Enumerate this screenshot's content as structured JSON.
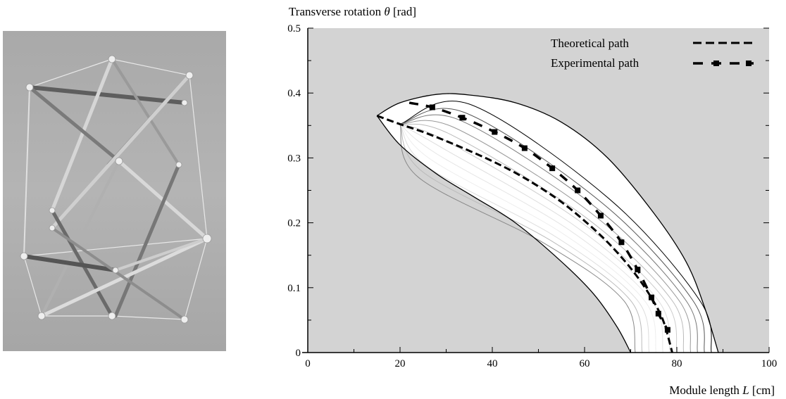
{
  "photo": {
    "description_icon": "tensegrity-module-photo"
  },
  "chart_data": {
    "type": "line",
    "xlabel_prefix": "Module length ",
    "xlabel_var": "L",
    "xlabel_unit": " [cm]",
    "ylabel_prefix": "Transverse rotation ",
    "ylabel_var": "θ",
    "ylabel_unit": " [rad]",
    "xlim": [
      0,
      100
    ],
    "ylim": [
      0,
      0.5
    ],
    "x_ticks": [
      "0",
      "20",
      "40",
      "60",
      "80",
      "100"
    ],
    "x_tick_values": [
      0,
      20,
      40,
      60,
      80,
      100
    ],
    "y_ticks": [
      "0",
      "0.1",
      "0.2",
      "0.3",
      "0.4",
      "0.5"
    ],
    "y_tick_values": [
      0,
      0.1,
      0.2,
      0.3,
      0.4,
      0.5
    ],
    "background_color": "#d3d3d3",
    "legend_position": "top-right",
    "series": [
      {
        "name": "Theoretical path",
        "style": "dashed",
        "color": "#000000",
        "x": [
          15,
          20,
          25,
          30,
          35,
          40,
          45,
          50,
          55,
          60,
          65,
          70,
          74,
          77,
          79
        ],
        "y": [
          0.365,
          0.352,
          0.34,
          0.326,
          0.311,
          0.295,
          0.277,
          0.256,
          0.232,
          0.203,
          0.17,
          0.13,
          0.09,
          0.05,
          0.0
        ]
      },
      {
        "name": "Experimental path",
        "style": "dash-square",
        "color": "#000000",
        "x": [
          22,
          27,
          33.5,
          40.5,
          47,
          53,
          58.5,
          63.5,
          68,
          71.5,
          74.5,
          76,
          78
        ],
        "y": [
          0.385,
          0.378,
          0.362,
          0.34,
          0.315,
          0.284,
          0.25,
          0.211,
          0.17,
          0.128,
          0.085,
          0.06,
          0.035
        ],
        "markers_x": [
          27,
          33.5,
          40.5,
          47,
          53,
          58.5,
          63.5,
          68,
          71.5,
          74.5,
          76,
          78
        ],
        "markers_y": [
          0.378,
          0.362,
          0.34,
          0.315,
          0.284,
          0.25,
          0.211,
          0.17,
          0.128,
          0.085,
          0.06,
          0.035
        ]
      }
    ],
    "feasible_region": {
      "upper_x": [
        15,
        20,
        28,
        35,
        45,
        55,
        65,
        75,
        82,
        86,
        89
      ],
      "upper_y": [
        0.365,
        0.385,
        0.398,
        0.397,
        0.385,
        0.355,
        0.3,
        0.215,
        0.14,
        0.07,
        0.0
      ],
      "lower_x": [
        15,
        20,
        28,
        36,
        45,
        55,
        62,
        67,
        70
      ],
      "lower_y": [
        0.365,
        0.32,
        0.275,
        0.24,
        0.2,
        0.14,
        0.09,
        0.04,
        0.0
      ]
    },
    "family_curves": [
      {
        "apex_x": 20,
        "apex_y": 0.352,
        "peak_x": 35,
        "peak_y": 0.383,
        "end_x": 87.5,
        "gray": "#000000"
      },
      {
        "apex_x": 20,
        "apex_y": 0.352,
        "peak_x": 34,
        "peak_y": 0.37,
        "end_x": 86,
        "gray": "#555555"
      },
      {
        "apex_x": 20,
        "apex_y": 0.352,
        "peak_x": 33,
        "peak_y": 0.358,
        "end_x": 84.5,
        "gray": "#777777"
      },
      {
        "apex_x": 20,
        "apex_y": 0.352,
        "peak_x": 32,
        "peak_y": 0.346,
        "end_x": 83,
        "gray": "#999999"
      },
      {
        "apex_x": 20,
        "apex_y": 0.352,
        "peak_x": 31,
        "peak_y": 0.336,
        "end_x": 81.5,
        "gray": "#bbbbbb"
      },
      {
        "apex_x": 20,
        "apex_y": 0.352,
        "peak_x": 30,
        "peak_y": 0.326,
        "end_x": 80,
        "gray": "#cccccc"
      },
      {
        "apex_x": 20,
        "apex_y": 0.352,
        "peak_x": 29,
        "peak_y": 0.316,
        "end_x": 78.5,
        "gray": "#dddddd"
      },
      {
        "apex_x": 20,
        "apex_y": 0.352,
        "peak_x": 28,
        "peak_y": 0.306,
        "end_x": 77,
        "gray": "#e5e5e5"
      },
      {
        "apex_x": 20,
        "apex_y": 0.352,
        "peak_x": 27,
        "peak_y": 0.296,
        "end_x": 75.5,
        "gray": "#eeeeee"
      },
      {
        "apex_x": 20,
        "apex_y": 0.352,
        "peak_x": 26,
        "peak_y": 0.286,
        "end_x": 74,
        "gray": "#dddddd"
      },
      {
        "apex_x": 20,
        "apex_y": 0.352,
        "peak_x": 25,
        "peak_y": 0.278,
        "end_x": 72.5,
        "gray": "#bbbbbb"
      },
      {
        "apex_x": 20,
        "apex_y": 0.352,
        "peak_x": 24,
        "peak_y": 0.27,
        "end_x": 71,
        "gray": "#888888"
      }
    ]
  }
}
